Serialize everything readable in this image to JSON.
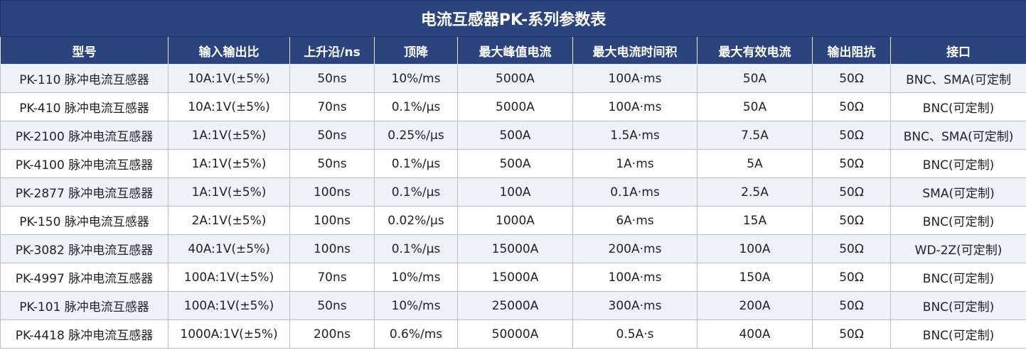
{
  "title": "电流互感器PK-系列参数表",
  "headers": [
    "型号",
    "输入输出比",
    "上升沿/ns",
    "顶降",
    "最大峰值电流",
    "最大电流时间积",
    "最大有效电流",
    "输出阻抗",
    "接口"
  ],
  "rows": [
    [
      "PK-110 脉冲电流互感器",
      "10A:1V(±5%)",
      "50ns",
      "10%/ms",
      "5000A",
      "100A·ms",
      "50A",
      "50Ω",
      "BNC、SMA(可定制"
    ],
    [
      "PK-410 脉冲电流互感器",
      "10A:1V(±5%)",
      "70ns",
      "0.1%/μs",
      "5000A",
      "100A·ms",
      "50A",
      "50Ω",
      "BNC(可定制)"
    ],
    [
      "PK-2100 脉冲电流互感器",
      "1A:1V(±5%)",
      "50ns",
      "0.25%/μs",
      "500A",
      "1.5A·ms",
      "7.5A",
      "50Ω",
      "BNC、SMA(可定制)"
    ],
    [
      "PK-4100 脉冲电流互感器",
      "1A:1V(±5%)",
      "50ns",
      "0.1%/μs",
      "500A",
      "1A·ms",
      "5A",
      "50Ω",
      "BNC(可定制)"
    ],
    [
      "PK-2877 脉冲电流互感器",
      "1A:1V(±5%)",
      "100ns",
      "0.1%/μs",
      "100A",
      "0.1A·ms",
      "2.5A",
      "50Ω",
      "SMA(可定制)"
    ],
    [
      "PK-150 脉冲电流互感器",
      "2A:1V(±5%)",
      "100ns",
      "0.02%/μs",
      "1000A",
      "6A·ms",
      "15A",
      "50Ω",
      "BNC(可定制)"
    ],
    [
      "PK-3082 脉冲电流互感器",
      "40A:1V(±5%)",
      "100ns",
      "0.1%/μs",
      "15000A",
      "200A·ms",
      "100A",
      "50Ω",
      "WD-2Z(可定制)"
    ],
    [
      "PK-4997 脉冲电流互感器",
      "100A:1V(±5%)",
      "70ns",
      "10%/ms",
      "15000A",
      "100A·ms",
      "150A",
      "50Ω",
      "BNC(可定制)"
    ],
    [
      "PK-101 脉冲电流互感器",
      "100A:1V(±5%)",
      "50ns",
      "10%/ms",
      "25000A",
      "300A·ms",
      "200A",
      "50Ω",
      "BNC(可定制)"
    ],
    [
      "PK-4418 脉冲电流互感器",
      "1000A:1V(±5%)",
      "200ns",
      "0.6%/ms",
      "50000A",
      "0.5A·s",
      "400A",
      "50Ω",
      "BNC(可定制)"
    ]
  ],
  "colors": {
    "header_bg": "#2b4480",
    "header_text": "#ffffff",
    "alt_row_bg": "#eef1f8",
    "row_bg": "#ffffff"
  }
}
